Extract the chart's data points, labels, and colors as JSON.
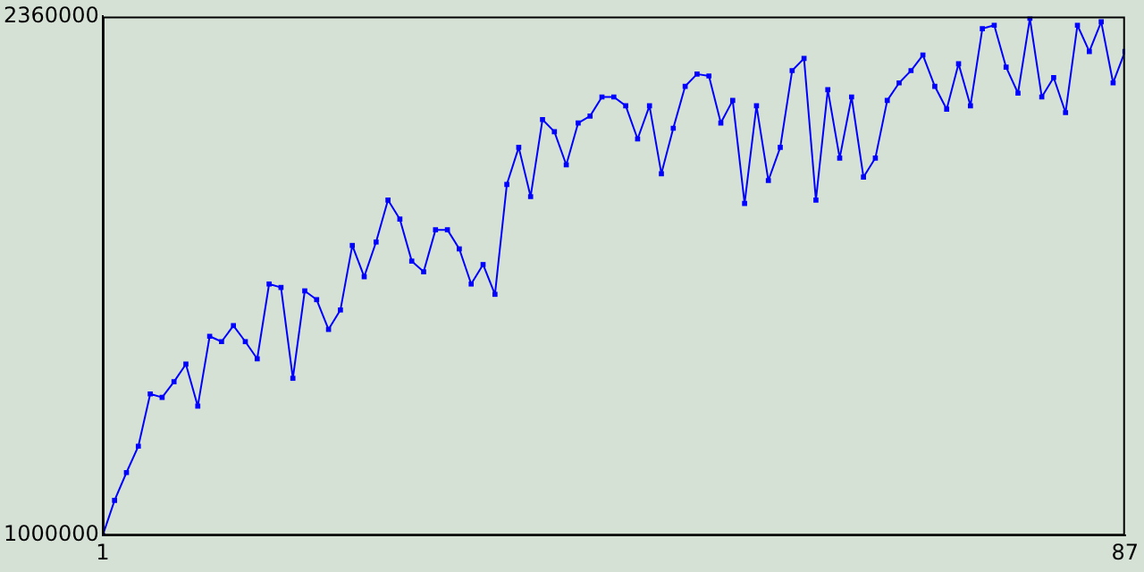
{
  "chart_data": {
    "type": "line",
    "x": [
      1,
      2,
      3,
      4,
      5,
      6,
      7,
      8,
      9,
      10,
      11,
      12,
      13,
      14,
      15,
      16,
      17,
      18,
      19,
      20,
      21,
      22,
      23,
      24,
      25,
      26,
      27,
      28,
      29,
      30,
      31,
      32,
      33,
      34,
      35,
      36,
      37,
      38,
      39,
      40,
      41,
      42,
      43,
      44,
      45,
      46,
      47,
      48,
      49,
      50,
      51,
      52,
      53,
      54,
      55,
      56,
      57,
      58,
      59,
      60,
      61,
      62,
      63,
      64,
      65,
      66,
      67,
      68,
      69,
      70,
      71,
      72,
      73,
      74,
      75,
      76,
      77,
      78,
      79,
      80,
      81,
      82,
      83,
      84,
      85,
      86,
      87
    ],
    "series": [
      {
        "color": "#0000ff",
        "values": [
          1000000,
          1092000,
          1165000,
          1234000,
          1371000,
          1362000,
          1403000,
          1449000,
          1339000,
          1522000,
          1508000,
          1550000,
          1508000,
          1463000,
          1659000,
          1650000,
          1412000,
          1641000,
          1618000,
          1540000,
          1591000,
          1760000,
          1678000,
          1769000,
          1879000,
          1829000,
          1719000,
          1691000,
          1801000,
          1801000,
          1751000,
          1659000,
          1710000,
          1632000,
          1920000,
          2017000,
          1888000,
          2090000,
          2058000,
          1971000,
          2081000,
          2099000,
          2149000,
          2149000,
          2126000,
          2039000,
          2126000,
          1948000,
          2067000,
          2177000,
          2209000,
          2204000,
          2081000,
          2140000,
          1870000,
          2126000,
          1930000,
          2017000,
          2218000,
          2250000,
          1879000,
          2168000,
          1989000,
          2149000,
          1939000,
          1989000,
          2140000,
          2186000,
          2218000,
          2259000,
          2177000,
          2117000,
          2236000,
          2126000,
          2328000,
          2337000,
          2227000,
          2159000,
          2355000,
          2149000,
          2200000,
          2108000,
          2337000,
          2268000,
          2346000,
          2186000,
          2268000
        ]
      }
    ],
    "xlim": [
      1,
      87
    ],
    "xticks": [
      1,
      87
    ],
    "ylim": [
      1000000,
      2360000
    ],
    "yticks": [
      1000000,
      2360000
    ],
    "grid": false,
    "legend": false,
    "marker": "square",
    "line_style": "solid"
  }
}
